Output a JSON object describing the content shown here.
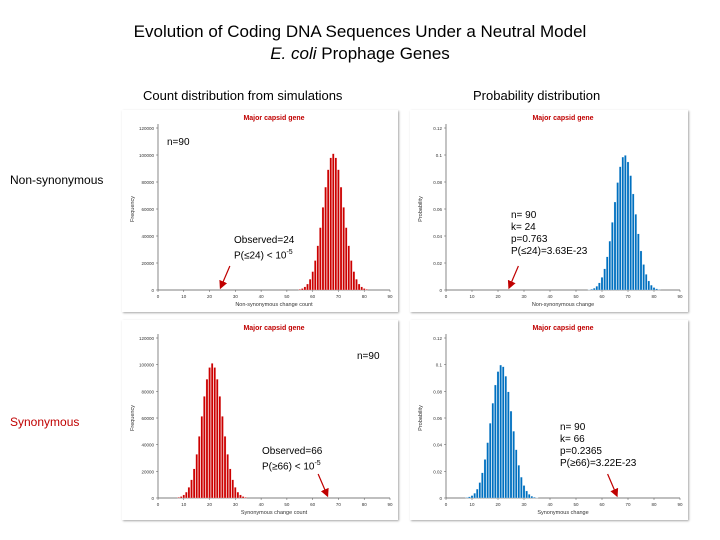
{
  "title": {
    "line1": "Evolution of Coding DNA Sequences Under a Neutral Model",
    "line2_italic": "E. coli",
    "line2_rest": " Prophage Genes"
  },
  "column_headers": {
    "left": "Count distribution from simulations",
    "right": "Probability distribution"
  },
  "row_labels": {
    "top": "Non-synonymous",
    "bottom": "Synonymous"
  },
  "annotations": {
    "top_n": "n=90",
    "bottom_n": "n=90",
    "top_left_observed": "Observed=24",
    "top_left_p_prefix": "P(≤24) < 10",
    "top_left_p_exp": "-5",
    "bottom_left_observed": "Observed=66",
    "bottom_left_p_prefix": "P(≥66) < 10",
    "bottom_left_p_exp": "-5",
    "top_right_lines": [
      "n= 90",
      "k= 24",
      "p=0.763",
      "P(≤24)=3.63E-23"
    ],
    "bottom_right_lines": [
      "n= 90",
      "k= 66",
      "p=0.2365",
      "P(≥66)=3.22E-23"
    ]
  },
  "colors": {
    "count_bars": "#cc0000",
    "prob_bars": "#0070c0",
    "panel_title": "#c00000",
    "arrow": "#c00000"
  },
  "chart_data": [
    {
      "id": "nonsyn-count",
      "type": "bar",
      "title": "Major capsid gene",
      "xlabel": "Non-synonymous change count",
      "ylabel": "Frequency",
      "x_ticks": [
        0,
        10,
        20,
        30,
        40,
        50,
        60,
        70,
        80,
        90
      ],
      "y_ticks": [
        "0",
        "20000",
        "40000",
        "60000",
        "80000",
        "100000",
        "120000"
      ],
      "xlim": [
        0,
        90
      ],
      "ylim": [
        0,
        120000
      ],
      "mean": 68,
      "sd": 4,
      "peak": 101000,
      "observed": 24,
      "color": "#cc0000"
    },
    {
      "id": "nonsyn-prob",
      "type": "bar",
      "title": "Major capsid gene",
      "xlabel": "Non-synonymous change",
      "ylabel": "Probability",
      "x_ticks": [
        0,
        10,
        20,
        30,
        40,
        50,
        60,
        70,
        80,
        90
      ],
      "y_ticks": [
        "0",
        "0.02",
        "0.04",
        "0.06",
        "0.08",
        "0.1",
        "0.12"
      ],
      "xlim": [
        0,
        90
      ],
      "ylim": [
        0,
        0.12
      ],
      "mean": 68.7,
      "sd": 4,
      "peak": 0.1,
      "observed": 24,
      "color": "#0070c0"
    },
    {
      "id": "syn-count",
      "type": "bar",
      "title": "Major capsid gene",
      "xlabel": "Synonymous change count",
      "ylabel": "Frequency",
      "x_ticks": [
        0,
        10,
        20,
        30,
        40,
        50,
        60,
        70,
        80,
        90
      ],
      "y_ticks": [
        "0",
        "20000",
        "40000",
        "60000",
        "80000",
        "100000",
        "120000"
      ],
      "xlim": [
        0,
        90
      ],
      "ylim": [
        0,
        120000
      ],
      "mean": 21,
      "sd": 4,
      "peak": 101000,
      "observed": 66,
      "color": "#cc0000"
    },
    {
      "id": "syn-prob",
      "type": "bar",
      "title": "Major capsid gene",
      "xlabel": "Synonymous change",
      "ylabel": "Probability",
      "x_ticks": [
        0,
        10,
        20,
        30,
        40,
        50,
        60,
        70,
        80,
        90
      ],
      "y_ticks": [
        "0",
        "0.02",
        "0.04",
        "0.06",
        "0.08",
        "0.1",
        "0.12"
      ],
      "xlim": [
        0,
        90
      ],
      "ylim": [
        0,
        0.12
      ],
      "mean": 21.3,
      "sd": 4,
      "peak": 0.1,
      "observed": 66,
      "color": "#0070c0"
    }
  ]
}
